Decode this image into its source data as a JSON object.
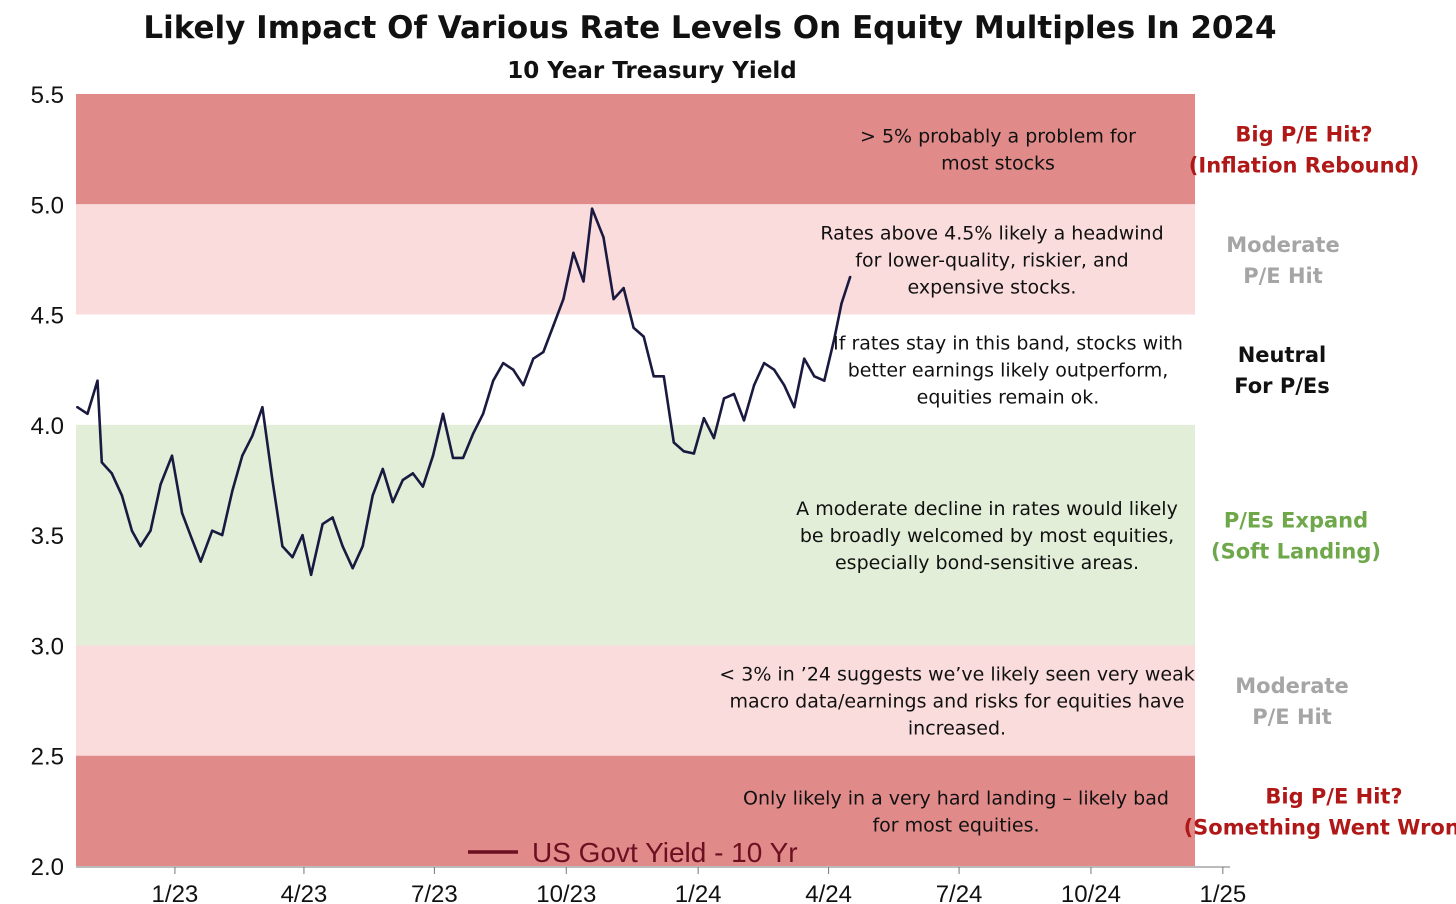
{
  "chart_data": {
    "type": "line",
    "title": "Likely Impact Of Various Rate Levels On Equity Multiples In 2024",
    "subtitle": "10 Year Treasury Yield",
    "xlabel": "",
    "ylabel": "",
    "ylim": [
      2.0,
      5.5
    ],
    "yticks": [
      "2.0",
      "2.5",
      "3.0",
      "3.5",
      "4.0",
      "4.5",
      "5.0",
      "5.5"
    ],
    "xlim": [
      "2022-10-24",
      "2025-01-06"
    ],
    "xticks": [
      {
        "label": "1/23",
        "date": "2023-01-01"
      },
      {
        "label": "4/23",
        "date": "2023-04-01"
      },
      {
        "label": "7/23",
        "date": "2023-07-01"
      },
      {
        "label": "10/23",
        "date": "2023-10-01"
      },
      {
        "label": "1/24",
        "date": "2024-01-01"
      },
      {
        "label": "4/24",
        "date": "2024-04-01"
      },
      {
        "label": "7/24",
        "date": "2024-07-01"
      },
      {
        "label": "10/24",
        "date": "2024-10-01"
      },
      {
        "label": "1/25",
        "date": "2025-01-01"
      }
    ],
    "legend": {
      "placement": "bottom-center",
      "label": "US Govt Yield - 10 Yr",
      "color": "#6a1020"
    },
    "bands": [
      {
        "from": 5.0,
        "to": 5.5,
        "color": "#e08a8a",
        "note": [
          "> 5% probably a problem for",
          "most stocks"
        ],
        "label": [
          "Big P/E Hit?",
          "(Inflation Rebound)"
        ],
        "label_color": "#b01818"
      },
      {
        "from": 4.5,
        "to": 5.0,
        "color": "#fbdcdc",
        "note": [
          "Rates above 4.5% likely a headwind",
          "for lower-quality, riskier, and",
          "expensive stocks."
        ],
        "label": [
          "Moderate",
          "P/E Hit"
        ],
        "label_color": "#a5a5a5"
      },
      {
        "from": 4.0,
        "to": 4.5,
        "color": "#ffffff",
        "note": [
          "If rates stay in this band, stocks with",
          "better earnings likely outperform,",
          "equities remain ok."
        ],
        "label": [
          "Neutral",
          "For P/Es"
        ],
        "label_color": "#111111"
      },
      {
        "from": 3.0,
        "to": 4.0,
        "color": "#e2eed8",
        "note": [
          "A moderate decline in rates would likely",
          "be broadly welcomed by most equities,",
          "especially bond-sensitive areas."
        ],
        "label": [
          "P/Es Expand",
          "(Soft Landing)"
        ],
        "label_color": "#6fa84a"
      },
      {
        "from": 2.5,
        "to": 3.0,
        "color": "#fbdcdc",
        "note": [
          "< 3% in ’24 suggests we’ve likely seen very weak",
          "macro data/earnings and risks for equities have",
          "increased."
        ],
        "label": [
          "Moderate",
          "P/E Hit"
        ],
        "label_color": "#a5a5a5"
      },
      {
        "from": 2.0,
        "to": 2.5,
        "color": "#e08a8a",
        "note": [
          "Only likely in a very hard landing – likely bad",
          "for most equities."
        ],
        "label": [
          "Big P/E Hit?",
          "(Something Went Wrong)"
        ],
        "label_color": "#b01818"
      }
    ],
    "series": [
      {
        "name": "US Govt Yield - 10 Yr",
        "color": "#1a1a40",
        "x": [
          "2022-10-25",
          "2022-11-01",
          "2022-11-08",
          "2022-11-11",
          "2022-11-18",
          "2022-11-25",
          "2022-12-02",
          "2022-12-08",
          "2022-12-15",
          "2022-12-22",
          "2022-12-30",
          "2023-01-06",
          "2023-01-13",
          "2023-01-19",
          "2023-01-27",
          "2023-02-03",
          "2023-02-10",
          "2023-02-17",
          "2023-02-24",
          "2023-03-03",
          "2023-03-10",
          "2023-03-17",
          "2023-03-24",
          "2023-03-31",
          "2023-04-06",
          "2023-04-14",
          "2023-04-21",
          "2023-04-28",
          "2023-05-05",
          "2023-05-12",
          "2023-05-19",
          "2023-05-26",
          "2023-06-02",
          "2023-06-09",
          "2023-06-16",
          "2023-06-23",
          "2023-06-30",
          "2023-07-07",
          "2023-07-14",
          "2023-07-21",
          "2023-07-28",
          "2023-08-04",
          "2023-08-11",
          "2023-08-18",
          "2023-08-25",
          "2023-09-01",
          "2023-09-08",
          "2023-09-15",
          "2023-09-22",
          "2023-09-29",
          "2023-10-06",
          "2023-10-13",
          "2023-10-19",
          "2023-10-27",
          "2023-11-03",
          "2023-11-10",
          "2023-11-17",
          "2023-11-24",
          "2023-12-01",
          "2023-12-08",
          "2023-12-15",
          "2023-12-22",
          "2023-12-29",
          "2024-01-05",
          "2024-01-12",
          "2024-01-19",
          "2024-01-26",
          "2024-02-02",
          "2024-02-09",
          "2024-02-16",
          "2024-02-23",
          "2024-03-01",
          "2024-03-08",
          "2024-03-15",
          "2024-03-22",
          "2024-03-29",
          "2024-04-05",
          "2024-04-10",
          "2024-04-16"
        ],
        "y": [
          4.08,
          4.05,
          4.2,
          3.83,
          3.78,
          3.68,
          3.52,
          3.45,
          3.52,
          3.73,
          3.86,
          3.6,
          3.48,
          3.38,
          3.52,
          3.5,
          3.7,
          3.86,
          3.95,
          4.08,
          3.75,
          3.45,
          3.4,
          3.5,
          3.32,
          3.55,
          3.58,
          3.45,
          3.35,
          3.45,
          3.68,
          3.8,
          3.65,
          3.75,
          3.78,
          3.72,
          3.86,
          4.05,
          3.85,
          3.85,
          3.96,
          4.05,
          4.2,
          4.28,
          4.25,
          4.18,
          4.3,
          4.33,
          4.45,
          4.57,
          4.78,
          4.65,
          4.98,
          4.85,
          4.57,
          4.62,
          4.44,
          4.4,
          4.22,
          4.22,
          3.92,
          3.88,
          3.87,
          4.03,
          3.94,
          4.12,
          4.14,
          4.02,
          4.18,
          4.28,
          4.25,
          4.18,
          4.08,
          4.3,
          4.22,
          4.2,
          4.39,
          4.55,
          4.67
        ]
      }
    ]
  }
}
